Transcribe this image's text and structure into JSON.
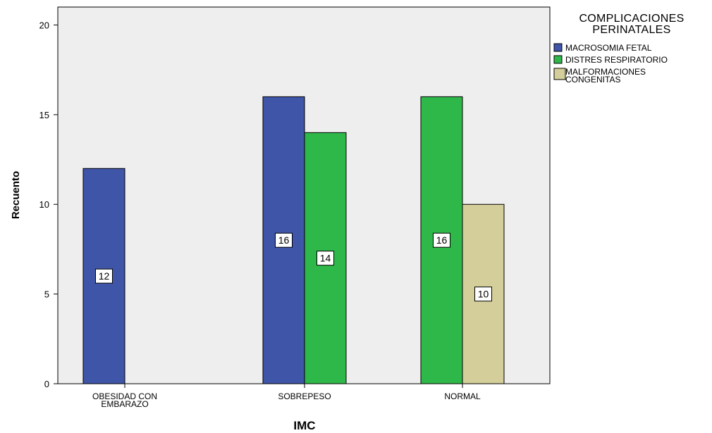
{
  "chart_data": {
    "type": "bar",
    "categories": [
      [
        "OBESIDAD CON",
        "EMBARAZO"
      ],
      [
        "SOBREPESO"
      ],
      [
        "NORMAL"
      ]
    ],
    "series": [
      {
        "name": "MACROSOMIA FETAL",
        "color": "#3e55a8",
        "values": [
          12,
          16,
          null
        ]
      },
      {
        "name": "DISTRES RESPIRATORIO",
        "color": "#2fb84a",
        "values": [
          null,
          14,
          16
        ]
      },
      {
        "name": "MALFORMACIONES CONGENITAS",
        "legend_lines": [
          "MALFORMACIONES",
          "CONGENITAS"
        ],
        "color": "#d3ce9a",
        "values": [
          null,
          null,
          10
        ]
      }
    ],
    "bar_positions": [
      [
        0,
        null,
        null
      ],
      [
        0,
        1,
        null
      ],
      [
        null,
        0,
        1
      ]
    ],
    "xlabel": "IMC",
    "ylabel": "Recuento",
    "ylim": [
      0,
      21
    ],
    "yticks": [
      0,
      5,
      10,
      15,
      20
    ],
    "legend": {
      "title_lines": [
        "COMPLICACIONES",
        "PERINATALES"
      ],
      "position": "right"
    },
    "plot_background": "#eeeeee",
    "grid": false
  }
}
